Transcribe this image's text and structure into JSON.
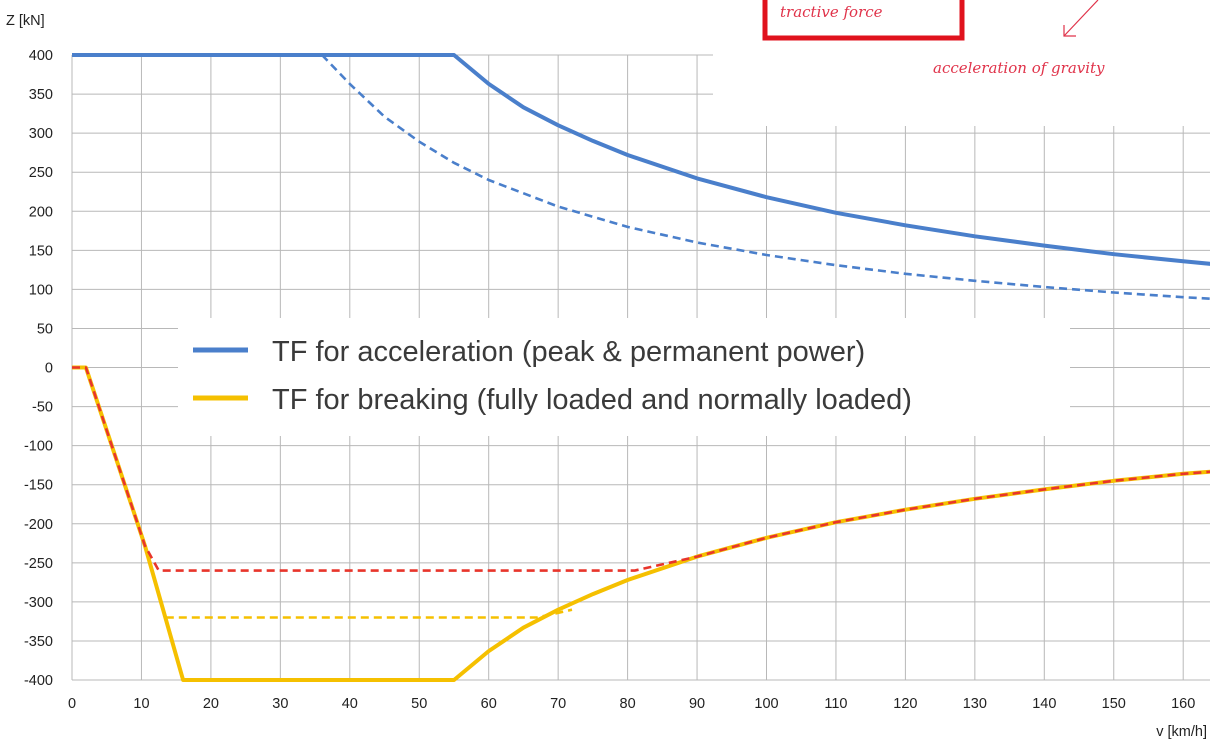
{
  "chart_data": {
    "type": "line",
    "xlabel": "v [km/h]",
    "ylabel": "Z [kN]",
    "xlim": [
      0,
      166
    ],
    "ylim": [
      -400,
      400
    ],
    "x_ticks": [
      0,
      10,
      20,
      30,
      40,
      50,
      60,
      70,
      80,
      90,
      100,
      110,
      120,
      130,
      140,
      150,
      160
    ],
    "y_ticks": [
      400,
      350,
      300,
      250,
      200,
      150,
      100,
      50,
      0,
      -50,
      -100,
      -150,
      -200,
      -250,
      -300,
      -350,
      -400
    ],
    "grid": true,
    "legend_position": "center",
    "legend": [
      {
        "label": "TF for acceleration (peak & permanent power)",
        "color": "#4a7fcb"
      },
      {
        "label": "TF for breaking (fully loaded and normally loaded)",
        "color": "#f5c000"
      }
    ],
    "series": [
      {
        "color": "#4a7fcb",
        "style": "solid",
        "x": [
          0,
          55,
          60,
          65,
          70,
          75,
          80,
          90,
          100,
          110,
          120,
          130,
          140,
          150,
          160,
          166
        ],
        "y": [
          400,
          400,
          363,
          333,
          310,
          290,
          272,
          242,
          218,
          198,
          182,
          168,
          156,
          145,
          136,
          131
        ]
      },
      {
        "color": "#4a7fcb",
        "style": "dashed",
        "x": [
          36,
          40,
          45,
          50,
          55,
          60,
          70,
          80,
          90,
          100,
          110,
          120,
          130,
          140,
          150,
          160,
          166
        ],
        "y": [
          400,
          363,
          321,
          289,
          262,
          240,
          206,
          180,
          160,
          144,
          131,
          120,
          111,
          103,
          96,
          90,
          87
        ]
      },
      {
        "color": "#f5c000",
        "style": "solid",
        "x": [
          0,
          2,
          10.5,
          16,
          55,
          60,
          65,
          70,
          75,
          80,
          90,
          100,
          110,
          120,
          130,
          140,
          150,
          160,
          166
        ],
        "y": [
          0,
          0,
          -228,
          -400,
          -400,
          -363,
          -333,
          -310,
          -290,
          -272,
          -242,
          -218,
          -198,
          -182,
          -168,
          -156,
          -145,
          -136,
          -132
        ]
      },
      {
        "color": "#f5c000",
        "style": "dashed",
        "x": [
          13.5,
          67,
          72
        ],
        "y": [
          -320,
          -320,
          -310
        ]
      },
      {
        "color": "#e8352b",
        "style": "dashed",
        "x": [
          0,
          2,
          10.5,
          12.5,
          81,
          90,
          100,
          110,
          120,
          130,
          140,
          150,
          160,
          166
        ],
        "y": [
          0,
          0,
          -228,
          -260,
          -260,
          -242,
          -218,
          -198,
          -182,
          -168,
          -156,
          -145,
          -136,
          -132
        ]
      }
    ],
    "annotations": [
      {
        "text": "tractive force",
        "kind": "boxed"
      },
      {
        "text": "acceleration of gravity",
        "kind": "arrow"
      }
    ]
  }
}
